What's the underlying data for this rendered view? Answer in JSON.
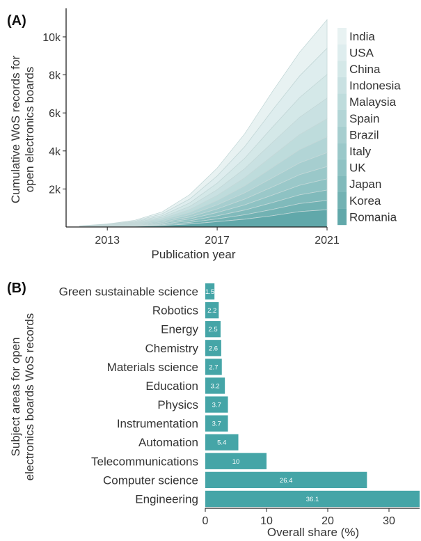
{
  "chart_data": [
    {
      "type": "area",
      "panel_label": "(A)",
      "title": "",
      "stacked": true,
      "xlabel": "Publication year",
      "ylabel_lines": [
        "Cumulative WoS records for",
        "open electronics boards"
      ],
      "x": [
        2012,
        2013,
        2014,
        2015,
        2016,
        2017,
        2018,
        2019,
        2020,
        2021
      ],
      "xlim": [
        2011.5,
        2021
      ],
      "ylim": [
        0,
        11500
      ],
      "xticks": [
        2013,
        2017,
        2021
      ],
      "yticks": [
        2000,
        4000,
        6000,
        8000,
        10000
      ],
      "ytick_labels": [
        "2k",
        "4k",
        "6k",
        "8k",
        "10k"
      ],
      "grid": false,
      "legend_position": "right",
      "series_order_bottom_to_top": [
        "Romania",
        "Korea",
        "Japan",
        "UK",
        "Italy",
        "Brazil",
        "Spain",
        "Malaysia",
        "Indonesia",
        "China",
        "USA",
        "India"
      ],
      "cumulative_top": [
        60,
        160,
        350,
        800,
        1700,
        3100,
        4900,
        7100,
        9200,
        10900
      ],
      "series": [
        {
          "name": "India",
          "color": "#e8f2f2",
          "values": [
            8,
            20,
            45,
            105,
            230,
            420,
            680,
            980,
            1250,
            1500
          ]
        },
        {
          "name": "USA",
          "color": "#deedee",
          "values": [
            7,
            18,
            40,
            95,
            205,
            380,
            610,
            890,
            1140,
            1380
          ]
        },
        {
          "name": "China",
          "color": "#d4e8e8",
          "values": [
            7,
            17,
            37,
            85,
            185,
            340,
            545,
            800,
            1030,
            1240
          ]
        },
        {
          "name": "Indonesia",
          "color": "#c9e1e2",
          "values": [
            6,
            15,
            33,
            76,
            165,
            300,
            480,
            700,
            910,
            1090
          ]
        },
        {
          "name": "Malaysia",
          "color": "#bedcdc",
          "values": [
            5,
            14,
            30,
            68,
            145,
            265,
            420,
            610,
            790,
            950
          ]
        },
        {
          "name": "Spain",
          "color": "#b2d5d6",
          "values": [
            5,
            13,
            27,
            62,
            130,
            235,
            370,
            540,
            700,
            830
          ]
        },
        {
          "name": "Brazil",
          "color": "#a6cecf",
          "values": [
            5,
            12,
            25,
            55,
            115,
            210,
            330,
            480,
            620,
            730
          ]
        },
        {
          "name": "Italy",
          "color": "#9ac8c9",
          "values": [
            4,
            11,
            23,
            50,
            105,
            190,
            300,
            430,
            555,
            650
          ]
        },
        {
          "name": "UK",
          "color": "#8ec2c3",
          "values": [
            4,
            10,
            21,
            45,
            95,
            175,
            275,
            390,
            505,
            590
          ]
        },
        {
          "name": "Japan",
          "color": "#80babb",
          "values": [
            3,
            9,
            19,
            42,
            88,
            160,
            250,
            360,
            460,
            540
          ]
        },
        {
          "name": "Korea",
          "color": "#72b2b3",
          "values": [
            3,
            8,
            17,
            38,
            80,
            145,
            230,
            330,
            420,
            490
          ]
        },
        {
          "name": "Romania",
          "color": "#61a8aa",
          "values": [
            3,
            13,
            33,
            79,
            157,
            280,
            410,
            590,
            810,
            910
          ]
        }
      ]
    },
    {
      "type": "bar",
      "orientation": "horizontal",
      "panel_label": "(B)",
      "title": "",
      "xlabel": "Overall share (%)",
      "ylabel_lines": [
        "Subject areas for open",
        "electronics boards WoS records"
      ],
      "xlim": [
        0,
        35
      ],
      "xticks": [
        0,
        10,
        20,
        30
      ],
      "bar_color": "#45a5a7",
      "label_color": "#ffffff",
      "categories": [
        "Green sustainable science",
        "Robotics",
        "Energy",
        "Chemistry",
        "Materials science",
        "Education",
        "Physics",
        "Instrumentation",
        "Automation",
        "Telecommunications",
        "Computer science",
        "Engineering"
      ],
      "value_labels": [
        "1.5",
        "2.2",
        "2.5",
        "2.6",
        "2.7",
        "3.2",
        "3.7",
        "3.7",
        "5.4",
        "10",
        "26.4",
        "36.1"
      ],
      "values": [
        1.5,
        2.2,
        2.5,
        2.6,
        2.7,
        3.2,
        3.7,
        3.7,
        5.4,
        10,
        26.4,
        36.1
      ]
    }
  ]
}
